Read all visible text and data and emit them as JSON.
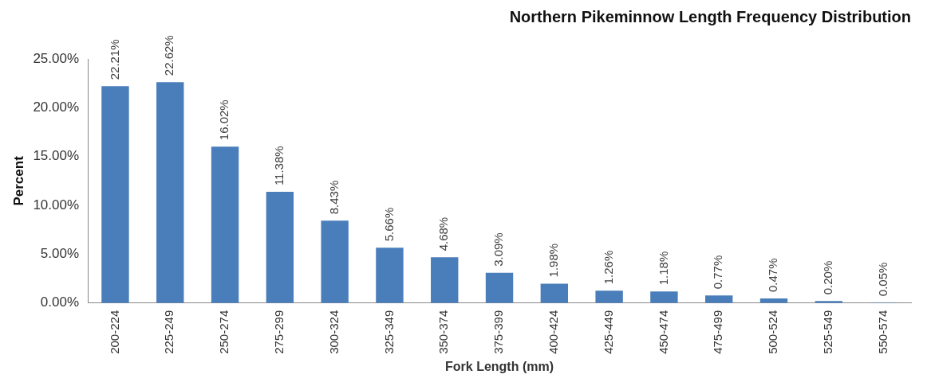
{
  "chart_data": {
    "type": "bar",
    "title": "Northern Pikeminnow Length Frequency Distribution",
    "xlabel": "Fork Length (mm)",
    "ylabel": "Percent",
    "categories": [
      "200-224",
      "225-249",
      "250-274",
      "275-299",
      "300-324",
      "325-349",
      "350-374",
      "375-399",
      "400-424",
      "425-449",
      "450-474",
      "475-499",
      "500-524",
      "525-549",
      "550-574"
    ],
    "values": [
      22.21,
      22.62,
      16.02,
      11.38,
      8.43,
      5.66,
      4.68,
      3.09,
      1.98,
      1.26,
      1.18,
      0.77,
      0.47,
      0.2,
      0.05
    ],
    "value_labels": [
      "22.21%",
      "22.62%",
      "16.02%",
      "11.38%",
      "8.43%",
      "5.66%",
      "4.68%",
      "3.09%",
      "1.98%",
      "1.26%",
      "1.18%",
      "0.77%",
      "0.47%",
      "0.20%",
      "0.05%"
    ],
    "color": "#4a7ebb",
    "ylim": [
      0,
      25
    ],
    "yticks": [
      {
        "value": 0,
        "label": "0.00%"
      },
      {
        "value": 5,
        "label": "5.00%"
      },
      {
        "value": 10,
        "label": "10.00%"
      },
      {
        "value": 15,
        "label": "15.00%"
      },
      {
        "value": 20,
        "label": "20.00%"
      },
      {
        "value": 25,
        "label": "25.00%"
      }
    ],
    "grid": false,
    "legend": false
  }
}
